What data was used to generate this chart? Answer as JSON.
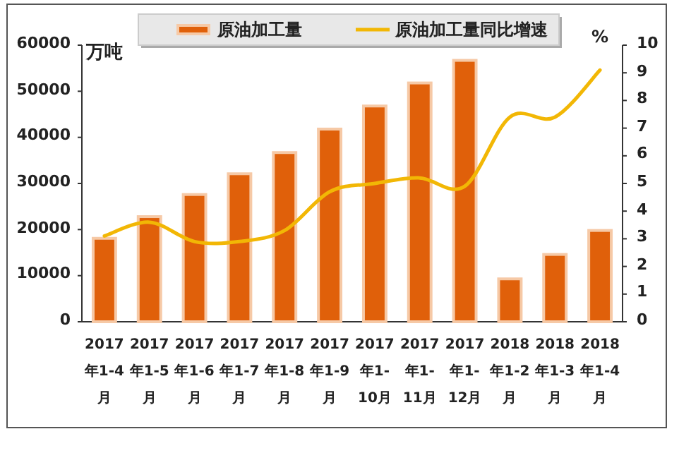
{
  "chart_data": {
    "type": "bar",
    "ylabel": "万吨",
    "y2label": "%",
    "categories": [
      "2017年1-4月",
      "2017年1-5月",
      "2017年1-6月",
      "2017年1-7月",
      "2017年1-8月",
      "2017年1-9月",
      "2017年1-10月",
      "2017年1-11月",
      "2017年1-12月",
      "2018年1-2月",
      "2018年1-3月",
      "2018年1-4月"
    ],
    "series": [
      {
        "name": "原油加工量",
        "color": "#e0600a",
        "values": [
          18100,
          22800,
          27600,
          32100,
          36700,
          41800,
          46800,
          51800,
          56700,
          9300,
          14600,
          19800
        ]
      },
      {
        "name": "原油加工量同比增速",
        "type": "line",
        "axis": "y2",
        "color": "#f2b705",
        "values": [
          3.1,
          3.6,
          2.9,
          2.9,
          3.3,
          4.7,
          5.0,
          5.2,
          4.9,
          7.4,
          7.4,
          9.1
        ]
      }
    ],
    "ylim": [
      0,
      60000
    ],
    "yticks": [
      0,
      10000,
      20000,
      30000,
      40000,
      50000,
      60000
    ],
    "y2lim": [
      0,
      10
    ],
    "y2ticks": [
      0,
      1,
      2,
      3,
      4,
      5,
      6,
      7,
      8,
      9,
      10
    ],
    "legend": "top",
    "grid": false
  }
}
